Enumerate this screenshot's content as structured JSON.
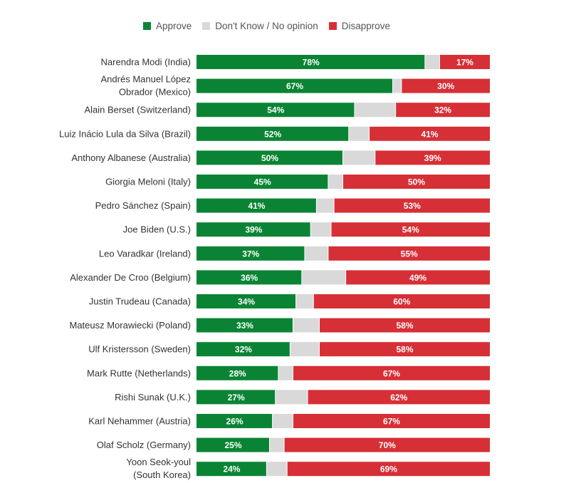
{
  "chart_data": {
    "type": "bar",
    "orientation": "horizontal",
    "stacked": true,
    "title": "",
    "xlabel": "",
    "ylabel": "",
    "xlim": [
      0,
      100
    ],
    "grid": false,
    "legend_position": "top-center",
    "legend": [
      {
        "key": "approve",
        "label": "Approve",
        "color": "#0a8434"
      },
      {
        "key": "dont_know",
        "label": "Don't Know / No opinion",
        "color": "#d9d9d9"
      },
      {
        "key": "disapprove",
        "label": "Disapprove",
        "color": "#d62f36"
      }
    ],
    "categories": [
      [
        "Narendra Modi (India)"
      ],
      [
        "Andrés Manuel López",
        "Obrador (Mexico)"
      ],
      [
        "Alain Berset (Switzerland)"
      ],
      [
        "Luiz Inácio Lula da Silva (Brazil)"
      ],
      [
        "Anthony Albanese (Australia)"
      ],
      [
        "Giorgia Meloni (Italy)"
      ],
      [
        "Pedro Sánchez (Spain)"
      ],
      [
        "Joe Biden (U.S.)"
      ],
      [
        "Leo Varadkar (Ireland)"
      ],
      [
        "Alexander De Croo (Belgium)"
      ],
      [
        "Justin Trudeau (Canada)"
      ],
      [
        "Mateusz Morawiecki (Poland)"
      ],
      [
        "Ulf Kristersson (Sweden)"
      ],
      [
        "Mark Rutte (Netherlands)"
      ],
      [
        "Rishi Sunak (U.K.)"
      ],
      [
        "Karl Nehammer (Austria)"
      ],
      [
        "Olaf Scholz (Germany)"
      ],
      [
        "Yoon Seok-youl",
        "(South Korea)"
      ]
    ],
    "series": [
      {
        "name": "Approve",
        "key": "approve",
        "values": [
          78,
          67,
          54,
          52,
          50,
          45,
          41,
          39,
          37,
          36,
          34,
          33,
          32,
          28,
          27,
          26,
          25,
          24
        ],
        "labels": [
          "78%",
          "67%",
          "54%",
          "52%",
          "50%",
          "45%",
          "41%",
          "39%",
          "37%",
          "36%",
          "34%",
          "33%",
          "32%",
          "28%",
          "27%",
          "26%",
          "25%",
          "24%"
        ]
      },
      {
        "name": "Don't Know / No opinion",
        "key": "dont_know",
        "values": [
          5,
          3,
          14,
          7,
          11,
          5,
          6,
          7,
          8,
          15,
          6,
          9,
          10,
          5,
          11,
          7,
          5,
          7
        ],
        "labels": null
      },
      {
        "name": "Disapprove",
        "key": "disapprove",
        "values": [
          17,
          30,
          32,
          41,
          39,
          50,
          53,
          54,
          55,
          49,
          60,
          58,
          58,
          67,
          62,
          67,
          70,
          69
        ],
        "labels": [
          "17%",
          "30%",
          "32%",
          "41%",
          "39%",
          "50%",
          "53%",
          "54%",
          "55%",
          "49%",
          "60%",
          "58%",
          "58%",
          "67%",
          "62%",
          "67%",
          "70%",
          "69%"
        ]
      }
    ]
  }
}
